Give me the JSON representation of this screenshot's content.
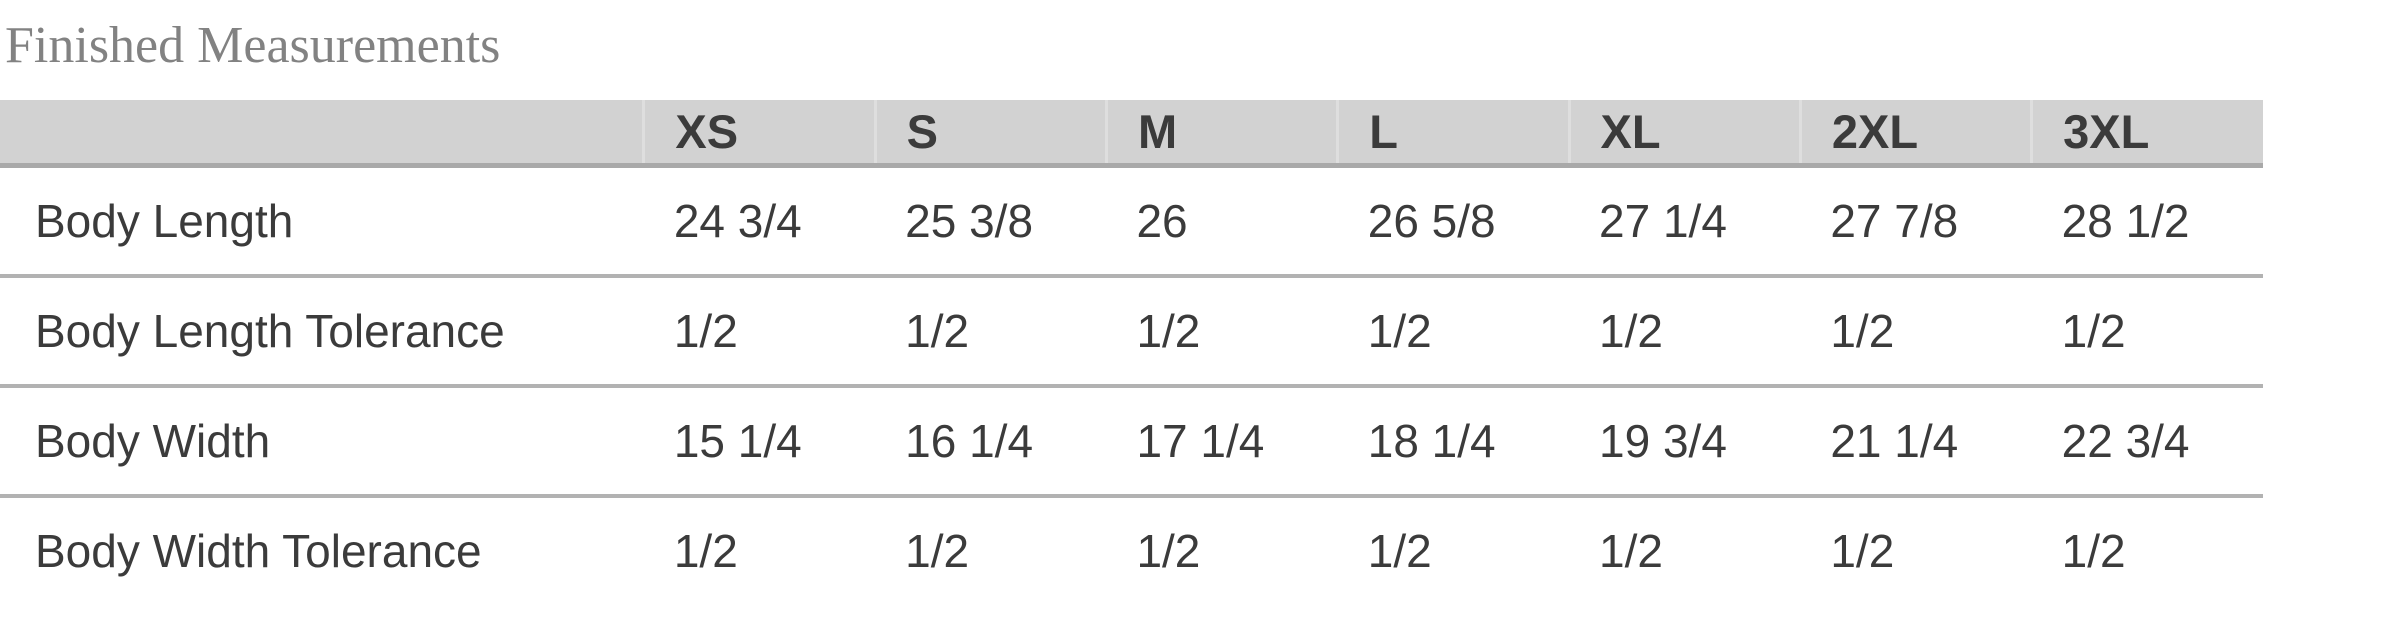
{
  "title": "Finished Measurements",
  "table": {
    "columns": [
      "",
      "XS",
      "S",
      "M",
      "L",
      "XL",
      "2XL",
      "3XL"
    ],
    "rows": [
      {
        "label": "Body Length",
        "values": [
          "24 3/4",
          "25 3/8",
          "26",
          "26 5/8",
          "27 1/4",
          "27 7/8",
          "28 1/2"
        ]
      },
      {
        "label": "Body Length Tolerance",
        "values": [
          "1/2",
          "1/2",
          "1/2",
          "1/2",
          "1/2",
          "1/2",
          "1/2"
        ]
      },
      {
        "label": "Body Width",
        "values": [
          "15 1/4",
          "16 1/4",
          "17 1/4",
          "18 1/4",
          "19 3/4",
          "21 1/4",
          "22 3/4"
        ]
      },
      {
        "label": "Body Width Tolerance",
        "values": [
          "1/2",
          "1/2",
          "1/2",
          "1/2",
          "1/2",
          "1/2",
          "1/2"
        ]
      }
    ]
  },
  "colors": {
    "title_text": "#828282",
    "header_bg": "#d2d2d2",
    "header_border": "#a9a9a9",
    "header_divider": "#dedede",
    "row_border": "#b2b2b2",
    "body_text": "#3b3b3b"
  }
}
